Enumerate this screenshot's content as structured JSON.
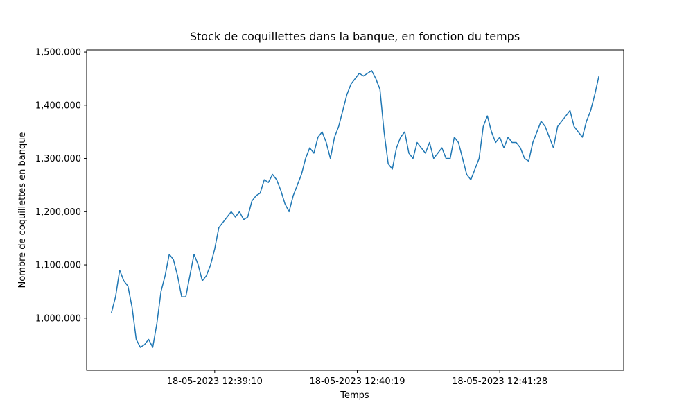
{
  "chart_data": {
    "type": "line",
    "title": "Stock de coquillettes dans la banque, en fonction du temps",
    "x_label": "Temps",
    "y_label": "Nombre de coquillettes en banque",
    "x": [
      "18-05-2023 12:38:20",
      "18-05-2023 12:38:22",
      "18-05-2023 12:38:24",
      "18-05-2023 12:38:26",
      "18-05-2023 12:38:28",
      "18-05-2023 12:38:30",
      "18-05-2023 12:38:32",
      "18-05-2023 12:38:34",
      "18-05-2023 12:38:36",
      "18-05-2023 12:38:38",
      "18-05-2023 12:38:40",
      "18-05-2023 12:38:42",
      "18-05-2023 12:38:44",
      "18-05-2023 12:38:46",
      "18-05-2023 12:38:48",
      "18-05-2023 12:38:50",
      "18-05-2023 12:38:52",
      "18-05-2023 12:38:54",
      "18-05-2023 12:38:56",
      "18-05-2023 12:38:58",
      "18-05-2023 12:39:00",
      "18-05-2023 12:39:02",
      "18-05-2023 12:39:04",
      "18-05-2023 12:39:06",
      "18-05-2023 12:39:08",
      "18-05-2023 12:39:10",
      "18-05-2023 12:39:12",
      "18-05-2023 12:39:14",
      "18-05-2023 12:39:16",
      "18-05-2023 12:39:18",
      "18-05-2023 12:39:20",
      "18-05-2023 12:39:22",
      "18-05-2023 12:39:24",
      "18-05-2023 12:39:26",
      "18-05-2023 12:39:28",
      "18-05-2023 12:39:30",
      "18-05-2023 12:39:32",
      "18-05-2023 12:39:34",
      "18-05-2023 12:39:36",
      "18-05-2023 12:39:38",
      "18-05-2023 12:39:40",
      "18-05-2023 12:39:42",
      "18-05-2023 12:39:44",
      "18-05-2023 12:39:46",
      "18-05-2023 12:39:48",
      "18-05-2023 12:39:50",
      "18-05-2023 12:39:52",
      "18-05-2023 12:39:54",
      "18-05-2023 12:39:56",
      "18-05-2023 12:39:58",
      "18-05-2023 12:40:00",
      "18-05-2023 12:40:02",
      "18-05-2023 12:40:04",
      "18-05-2023 12:40:06",
      "18-05-2023 12:40:08",
      "18-05-2023 12:40:10",
      "18-05-2023 12:40:12",
      "18-05-2023 12:40:14",
      "18-05-2023 12:40:16",
      "18-05-2023 12:40:18",
      "18-05-2023 12:40:20",
      "18-05-2023 12:40:22",
      "18-05-2023 12:40:24",
      "18-05-2023 12:40:26",
      "18-05-2023 12:40:28",
      "18-05-2023 12:40:30",
      "18-05-2023 12:40:32",
      "18-05-2023 12:40:34",
      "18-05-2023 12:40:36",
      "18-05-2023 12:40:38",
      "18-05-2023 12:40:40",
      "18-05-2023 12:40:42",
      "18-05-2023 12:40:44",
      "18-05-2023 12:40:46",
      "18-05-2023 12:40:48",
      "18-05-2023 12:40:50",
      "18-05-2023 12:40:52",
      "18-05-2023 12:40:54",
      "18-05-2023 12:40:56",
      "18-05-2023 12:40:58",
      "18-05-2023 12:41:00",
      "18-05-2023 12:41:02",
      "18-05-2023 12:41:04",
      "18-05-2023 12:41:06",
      "18-05-2023 12:41:08",
      "18-05-2023 12:41:10",
      "18-05-2023 12:41:12",
      "18-05-2023 12:41:14",
      "18-05-2023 12:41:16",
      "18-05-2023 12:41:18",
      "18-05-2023 12:41:20",
      "18-05-2023 12:41:22",
      "18-05-2023 12:41:24",
      "18-05-2023 12:41:26",
      "18-05-2023 12:41:28",
      "18-05-2023 12:41:30",
      "18-05-2023 12:41:32",
      "18-05-2023 12:41:34",
      "18-05-2023 12:41:36",
      "18-05-2023 12:41:38",
      "18-05-2023 12:41:40",
      "18-05-2023 12:41:42",
      "18-05-2023 12:41:44",
      "18-05-2023 12:41:46",
      "18-05-2023 12:41:48",
      "18-05-2023 12:41:50",
      "18-05-2023 12:41:52",
      "18-05-2023 12:41:54",
      "18-05-2023 12:41:56",
      "18-05-2023 12:41:58",
      "18-05-2023 12:42:00",
      "18-05-2023 12:42:02",
      "18-05-2023 12:42:04",
      "18-05-2023 12:42:06",
      "18-05-2023 12:42:08",
      "18-05-2023 12:42:10",
      "18-05-2023 12:42:12",
      "18-05-2023 12:42:14",
      "18-05-2023 12:42:16"
    ],
    "values": [
      1010000,
      1040000,
      1090000,
      1070000,
      1060000,
      1020000,
      960000,
      945000,
      950000,
      960000,
      945000,
      990000,
      1050000,
      1080000,
      1120000,
      1110000,
      1080000,
      1040000,
      1040000,
      1080000,
      1120000,
      1100000,
      1070000,
      1080000,
      1100000,
      1130000,
      1170000,
      1180000,
      1190000,
      1200000,
      1190000,
      1200000,
      1185000,
      1190000,
      1220000,
      1230000,
      1235000,
      1260000,
      1255000,
      1270000,
      1260000,
      1240000,
      1215000,
      1200000,
      1230000,
      1250000,
      1270000,
      1300000,
      1320000,
      1310000,
      1340000,
      1350000,
      1330000,
      1300000,
      1340000,
      1360000,
      1390000,
      1420000,
      1440000,
      1450000,
      1460000,
      1455000,
      1460000,
      1465000,
      1450000,
      1430000,
      1350000,
      1290000,
      1280000,
      1320000,
      1340000,
      1350000,
      1310000,
      1300000,
      1330000,
      1320000,
      1310000,
      1330000,
      1300000,
      1310000,
      1320000,
      1300000,
      1300000,
      1340000,
      1330000,
      1300000,
      1270000,
      1260000,
      1280000,
      1300000,
      1360000,
      1380000,
      1350000,
      1330000,
      1340000,
      1320000,
      1340000,
      1330000,
      1330000,
      1320000,
      1300000,
      1295000,
      1330000,
      1350000,
      1370000,
      1360000,
      1340000,
      1320000,
      1360000,
      1370000,
      1380000,
      1390000,
      1360000,
      1350000,
      1340000,
      1370000,
      1390000,
      1420000,
      1455000
    ],
    "color": "#1f77b4",
    "xlim": [
      "18-05-2023 12:38:08",
      "18-05-2023 12:42:28"
    ],
    "xticks": [
      "18-05-2023 12:39:10",
      "18-05-2023 12:40:19",
      "18-05-2023 12:41:28"
    ],
    "ylim": [
      902000,
      1504000
    ],
    "yticks": [
      {
        "value": 1000000,
        "label": "1,000,000"
      },
      {
        "value": 1100000,
        "label": "1,100,000"
      },
      {
        "value": 1200000,
        "label": "1,200,000"
      },
      {
        "value": 1300000,
        "label": "1,300,000"
      },
      {
        "value": 1400000,
        "label": "1,400,000"
      },
      {
        "value": 1500000,
        "label": "1,500,000"
      }
    ],
    "grid": false
  }
}
